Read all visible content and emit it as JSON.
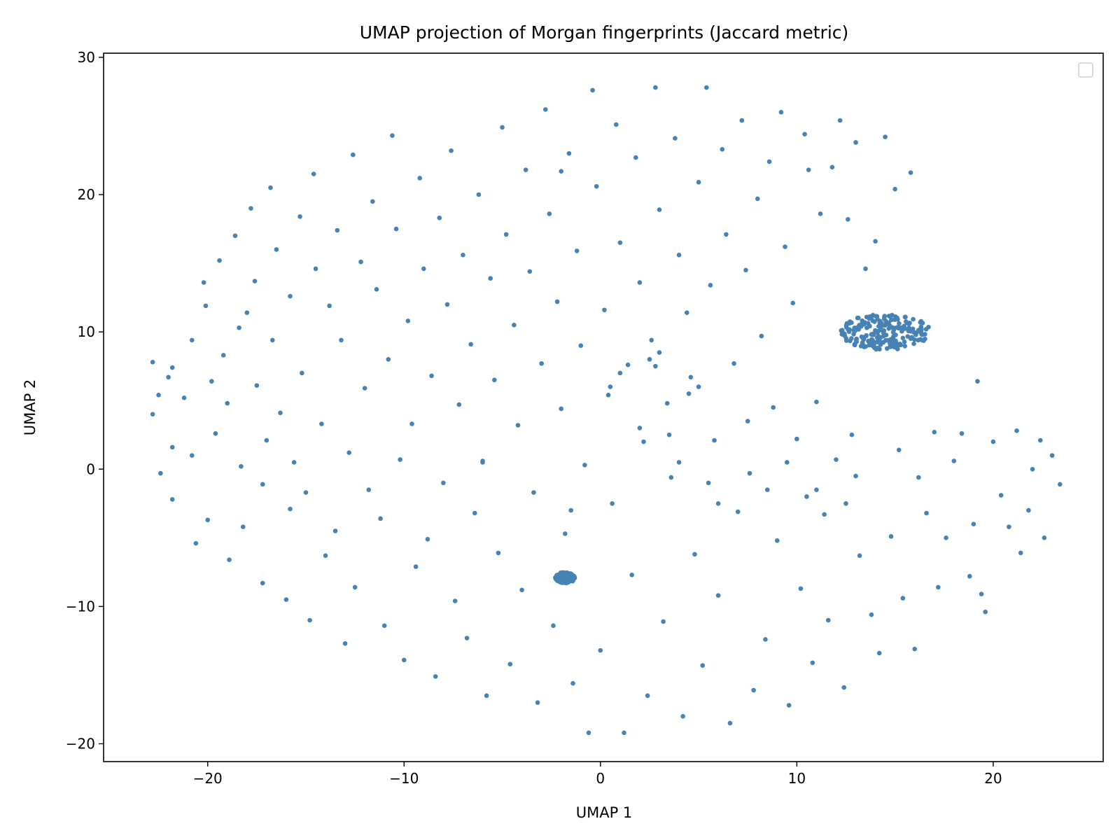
{
  "chart_data": {
    "type": "scatter",
    "title": "UMAP projection of Morgan fingerprints (Jaccard metric)",
    "xlabel": "UMAP 1",
    "ylabel": "UMAP 2",
    "xlim": [
      -25.3,
      25.6
    ],
    "ylim": [
      -21.3,
      30.3
    ],
    "xticks": [
      -20,
      -10,
      0,
      10,
      20
    ],
    "xtick_labels": [
      "−20",
      "−10",
      "0",
      "10",
      "20"
    ],
    "yticks": [
      -20,
      -10,
      0,
      10,
      20,
      30
    ],
    "ytick_labels": [
      "−20",
      "−10",
      "0",
      "10",
      "20",
      "30"
    ],
    "grid": false,
    "legend": "top-right (empty)",
    "color": "#4682b4",
    "series": [
      {
        "dense_clusters": [
          {
            "center": [
              14.5,
              10.0
            ],
            "approx_radius": [
              2.3,
              1.3
            ]
          },
          {
            "center": [
              -1.8,
              -7.9
            ],
            "approx_radius": [
              0.5,
              0.4
            ]
          }
        ],
        "points": [
          [
            -22.8,
            7.8
          ],
          [
            -22.8,
            4.0
          ],
          [
            -22.5,
            5.4
          ],
          [
            -22.4,
            -0.3
          ],
          [
            -22.0,
            6.7
          ],
          [
            -21.8,
            7.4
          ],
          [
            -21.8,
            1.6
          ],
          [
            -21.8,
            -2.2
          ],
          [
            -21.2,
            5.2
          ],
          [
            -20.8,
            9.4
          ],
          [
            -20.8,
            1.0
          ],
          [
            -20.6,
            -5.4
          ],
          [
            -20.2,
            13.6
          ],
          [
            -20.1,
            11.9
          ],
          [
            -20.0,
            -3.7
          ],
          [
            -19.8,
            6.4
          ],
          [
            -19.6,
            2.6
          ],
          [
            -19.4,
            15.2
          ],
          [
            -19.2,
            8.3
          ],
          [
            -19.0,
            4.8
          ],
          [
            -18.9,
            -6.6
          ],
          [
            -18.6,
            17.0
          ],
          [
            -18.4,
            10.3
          ],
          [
            -18.3,
            0.2
          ],
          [
            -18.2,
            -4.2
          ],
          [
            -18.0,
            11.4
          ],
          [
            -17.8,
            19.0
          ],
          [
            -17.6,
            13.7
          ],
          [
            -17.5,
            6.1
          ],
          [
            -17.2,
            -8.3
          ],
          [
            -17.2,
            -1.1
          ],
          [
            -17.0,
            2.1
          ],
          [
            -16.8,
            20.5
          ],
          [
            -16.7,
            9.4
          ],
          [
            -16.5,
            16.0
          ],
          [
            -16.3,
            4.1
          ],
          [
            -16.0,
            -9.5
          ],
          [
            -15.8,
            -2.9
          ],
          [
            -15.8,
            12.6
          ],
          [
            -15.6,
            0.5
          ],
          [
            -15.3,
            18.4
          ],
          [
            -15.2,
            7.0
          ],
          [
            -15.0,
            -1.7
          ],
          [
            -14.8,
            -11.0
          ],
          [
            -14.6,
            21.5
          ],
          [
            -14.5,
            14.6
          ],
          [
            -14.2,
            3.3
          ],
          [
            -14.0,
            -6.3
          ],
          [
            -13.8,
            11.9
          ],
          [
            -13.5,
            -4.5
          ],
          [
            -13.4,
            17.4
          ],
          [
            -13.2,
            9.4
          ],
          [
            -13.0,
            -12.7
          ],
          [
            -12.8,
            1.2
          ],
          [
            -12.6,
            22.9
          ],
          [
            -12.5,
            -8.6
          ],
          [
            -12.2,
            15.1
          ],
          [
            -12.0,
            5.9
          ],
          [
            -11.8,
            -1.5
          ],
          [
            -11.6,
            19.5
          ],
          [
            -11.4,
            13.1
          ],
          [
            -11.2,
            -3.6
          ],
          [
            -11.0,
            -11.4
          ],
          [
            -10.8,
            8.0
          ],
          [
            -10.6,
            24.3
          ],
          [
            -10.4,
            17.5
          ],
          [
            -10.2,
            0.7
          ],
          [
            -10.0,
            -13.9
          ],
          [
            -9.8,
            10.8
          ],
          [
            -9.6,
            3.3
          ],
          [
            -9.4,
            -7.1
          ],
          [
            -9.2,
            21.2
          ],
          [
            -9.0,
            14.6
          ],
          [
            -8.8,
            -5.1
          ],
          [
            -8.6,
            6.8
          ],
          [
            -8.4,
            -15.1
          ],
          [
            -8.2,
            18.3
          ],
          [
            -8.0,
            -1.0
          ],
          [
            -7.8,
            12.0
          ],
          [
            -7.6,
            23.2
          ],
          [
            -7.4,
            -9.6
          ],
          [
            -7.2,
            4.7
          ],
          [
            -7.0,
            15.6
          ],
          [
            -6.8,
            -12.3
          ],
          [
            -6.6,
            9.1
          ],
          [
            -6.4,
            -3.2
          ],
          [
            -6.2,
            20.0
          ],
          [
            -6.0,
            0.6
          ],
          [
            -5.8,
            -16.5
          ],
          [
            -5.6,
            13.9
          ],
          [
            -5.4,
            6.5
          ],
          [
            -5.2,
            -6.1
          ],
          [
            -5.0,
            24.9
          ],
          [
            -4.8,
            17.1
          ],
          [
            -4.6,
            -14.2
          ],
          [
            -4.4,
            10.5
          ],
          [
            -4.2,
            3.2
          ],
          [
            -4.0,
            -8.8
          ],
          [
            -3.8,
            21.8
          ],
          [
            -3.6,
            14.4
          ],
          [
            -3.4,
            -1.7
          ],
          [
            -3.2,
            -17.0
          ],
          [
            -3.0,
            7.7
          ],
          [
            -2.8,
            26.2
          ],
          [
            -2.6,
            18.6
          ],
          [
            -2.4,
            -11.4
          ],
          [
            -2.2,
            12.2
          ],
          [
            -2.0,
            4.4
          ],
          [
            -1.8,
            -4.7
          ],
          [
            -1.6,
            23.0
          ],
          [
            -1.4,
            -15.6
          ],
          [
            -1.2,
            15.9
          ],
          [
            -1.0,
            9.0
          ],
          [
            -0.8,
            0.3
          ],
          [
            -0.6,
            -19.2
          ],
          [
            -0.4,
            27.6
          ],
          [
            -0.2,
            20.6
          ],
          [
            0.0,
            -13.2
          ],
          [
            0.2,
            11.6
          ],
          [
            0.4,
            5.4
          ],
          [
            0.6,
            -2.5
          ],
          [
            0.8,
            25.1
          ],
          [
            1.0,
            16.5
          ],
          [
            1.2,
            -19.2
          ],
          [
            1.4,
            7.6
          ],
          [
            1.6,
            -7.7
          ],
          [
            1.8,
            22.7
          ],
          [
            2.0,
            13.6
          ],
          [
            2.2,
            2.0
          ],
          [
            2.4,
            -16.5
          ],
          [
            2.6,
            9.4
          ],
          [
            2.8,
            27.8
          ],
          [
            3.0,
            18.9
          ],
          [
            3.2,
            -11.1
          ],
          [
            3.4,
            4.8
          ],
          [
            3.6,
            -0.6
          ],
          [
            3.8,
            24.1
          ],
          [
            4.0,
            15.6
          ],
          [
            4.2,
            -18.0
          ],
          [
            4.4,
            11.4
          ],
          [
            4.6,
            6.7
          ],
          [
            4.8,
            -6.2
          ],
          [
            5.0,
            20.9
          ],
          [
            5.2,
            -14.3
          ],
          [
            5.4,
            27.8
          ],
          [
            5.6,
            13.4
          ],
          [
            5.8,
            2.1
          ],
          [
            6.0,
            -9.2
          ],
          [
            6.2,
            23.3
          ],
          [
            6.4,
            17.1
          ],
          [
            6.6,
            -18.5
          ],
          [
            6.8,
            7.7
          ],
          [
            7.0,
            -3.1
          ],
          [
            7.2,
            25.4
          ],
          [
            7.4,
            14.5
          ],
          [
            7.6,
            -0.3
          ],
          [
            7.8,
            -16.1
          ],
          [
            8.0,
            19.7
          ],
          [
            8.2,
            9.7
          ],
          [
            8.4,
            -12.4
          ],
          [
            8.6,
            22.4
          ],
          [
            8.8,
            4.5
          ],
          [
            9.0,
            -5.2
          ],
          [
            9.2,
            26.0
          ],
          [
            9.4,
            16.2
          ],
          [
            9.6,
            -17.2
          ],
          [
            9.8,
            12.1
          ],
          [
            10.0,
            2.2
          ],
          [
            10.2,
            -8.7
          ],
          [
            10.4,
            24.4
          ],
          [
            10.6,
            21.8
          ],
          [
            10.8,
            -14.1
          ],
          [
            11.0,
            4.9
          ],
          [
            11.2,
            18.6
          ],
          [
            11.4,
            -3.3
          ],
          [
            11.6,
            -11.0
          ],
          [
            11.8,
            22.0
          ],
          [
            12.0,
            0.7
          ],
          [
            12.2,
            25.4
          ],
          [
            12.4,
            -15.9
          ],
          [
            12.6,
            18.2
          ],
          [
            12.8,
            2.5
          ],
          [
            13.0,
            23.8
          ],
          [
            13.2,
            -6.3
          ],
          [
            13.5,
            14.6
          ],
          [
            13.8,
            -10.6
          ],
          [
            14.0,
            16.6
          ],
          [
            14.2,
            -13.4
          ],
          [
            14.5,
            24.2
          ],
          [
            14.8,
            -4.9
          ],
          [
            15.0,
            20.4
          ],
          [
            15.2,
            1.4
          ],
          [
            15.4,
            -9.4
          ],
          [
            15.8,
            21.6
          ],
          [
            16.0,
            -13.1
          ],
          [
            16.2,
            -0.6
          ],
          [
            16.6,
            -3.2
          ],
          [
            17.0,
            2.7
          ],
          [
            17.2,
            -8.6
          ],
          [
            17.6,
            -5.0
          ],
          [
            18.0,
            0.6
          ],
          [
            18.4,
            2.6
          ],
          [
            18.8,
            -7.8
          ],
          [
            19.0,
            -4.0
          ],
          [
            19.2,
            6.4
          ],
          [
            19.4,
            -9.1
          ],
          [
            19.6,
            -10.4
          ],
          [
            20.0,
            2.0
          ],
          [
            20.4,
            -1.9
          ],
          [
            20.8,
            -4.2
          ],
          [
            21.2,
            2.8
          ],
          [
            21.4,
            -6.1
          ],
          [
            21.8,
            -3.0
          ],
          [
            22.0,
            0.0
          ],
          [
            22.4,
            2.1
          ],
          [
            22.6,
            -5.0
          ],
          [
            23.0,
            1.0
          ],
          [
            23.4,
            -1.1
          ],
          [
            -1.5,
            -3.0
          ],
          [
            -6.0,
            0.5
          ],
          [
            -2.0,
            21.7
          ],
          [
            2.5,
            8.0
          ],
          [
            3.0,
            8.5
          ],
          [
            1.0,
            7.0
          ],
          [
            0.5,
            6.0
          ],
          [
            4.5,
            5.5
          ],
          [
            5.0,
            6.0
          ],
          [
            2.8,
            7.5
          ],
          [
            3.5,
            2.5
          ],
          [
            2.0,
            3.0
          ],
          [
            4.0,
            0.5
          ],
          [
            5.5,
            -1.0
          ],
          [
            6.0,
            -2.5
          ],
          [
            7.5,
            3.5
          ],
          [
            8.5,
            -1.5
          ],
          [
            9.5,
            0.5
          ],
          [
            10.5,
            -2.0
          ],
          [
            11.0,
            -1.5
          ],
          [
            12.5,
            -2.5
          ],
          [
            13.0,
            -0.5
          ]
        ]
      }
    ]
  }
}
